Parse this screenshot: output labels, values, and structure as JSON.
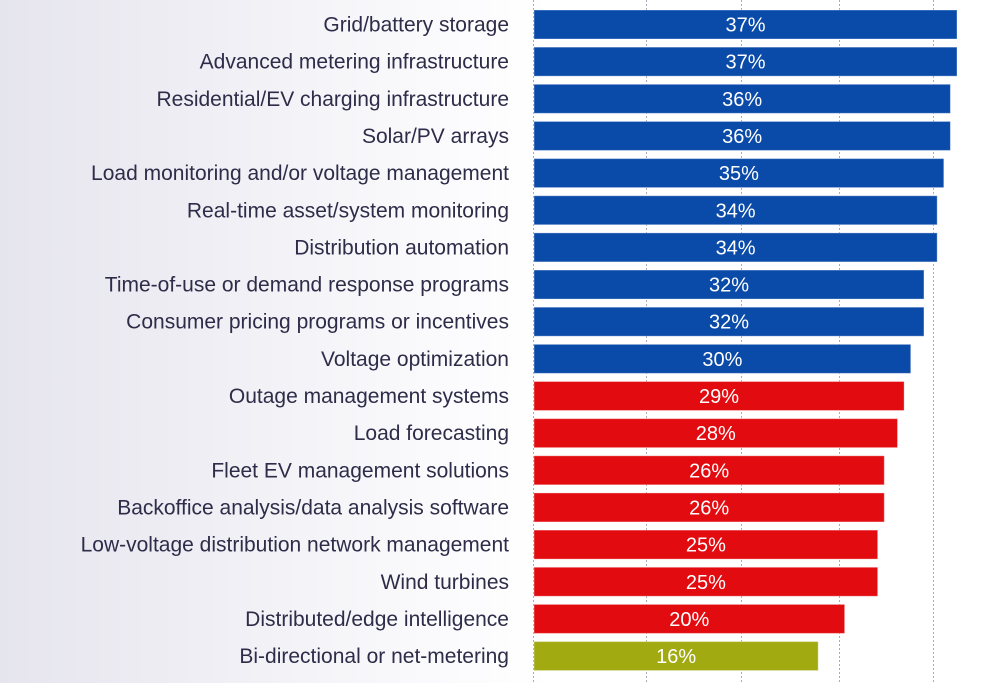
{
  "chart_data": {
    "type": "bar",
    "orientation": "horizontal",
    "title": "",
    "xlabel": "",
    "ylabel": "",
    "grid": true,
    "legend": "none",
    "value_format": "percent",
    "categories": [
      "Grid/battery storage",
      "Advanced metering infrastructure",
      "Residential/EV charging infrastructure",
      "Solar/PV arrays",
      "Load monitoring and/or voltage management",
      "Real-time asset/system monitoring",
      "Distribution automation",
      "Time-of-use or demand response programs",
      "Consumer pricing programs or incentives",
      "Voltage optimization",
      "Outage management systems",
      "Load forecasting",
      "Fleet EV management solutions",
      "Backoffice analysis/data analysis software",
      "Low-voltage distribution network management",
      "Wind turbines",
      "Distributed/edge intelligence",
      "Bi-directional or net-metering"
    ],
    "values": [
      37,
      37,
      36,
      36,
      35,
      34,
      34,
      32,
      32,
      30,
      29,
      28,
      26,
      26,
      25,
      25,
      20,
      16
    ],
    "value_labels": [
      "37%",
      "37%",
      "36%",
      "36%",
      "35%",
      "34%",
      "34%",
      "32%",
      "32%",
      "30%",
      "29%",
      "28%",
      "26%",
      "26%",
      "25%",
      "25%",
      "20%",
      "16%"
    ],
    "bar_groups": [
      "blue",
      "blue",
      "blue",
      "blue",
      "blue",
      "blue",
      "blue",
      "blue",
      "blue",
      "blue",
      "red",
      "red",
      "red",
      "red",
      "red",
      "red",
      "red",
      "olive"
    ],
    "colors": {
      "blue": "#0a4aa8",
      "red": "#e20c10",
      "olive": "#a2aa12"
    }
  }
}
